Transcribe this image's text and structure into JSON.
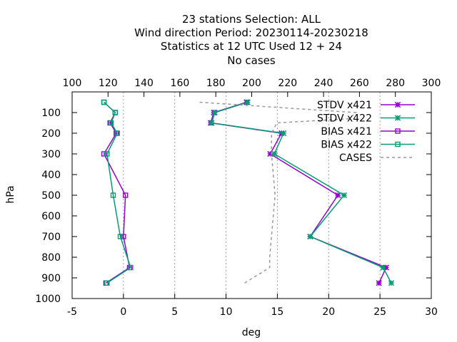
{
  "chart_data": {
    "type": "line",
    "title_lines": [
      "23 stations Selection: ALL",
      "Wind direction  Period: 20230114-20230218",
      "Statistics at 12 UTC  Used  12 + 24",
      "No cases"
    ],
    "xlabel": "deg",
    "ylabel": "hPa",
    "xlim": [
      -5,
      30
    ],
    "x_ticks": [
      -5,
      0,
      5,
      10,
      15,
      20,
      25,
      30
    ],
    "x2lim": [
      100,
      300
    ],
    "x2_ticks": [
      100,
      120,
      140,
      160,
      180,
      200,
      220,
      240,
      260,
      280,
      300
    ],
    "ylim": [
      1000,
      0
    ],
    "y_ticks": [
      100,
      200,
      300,
      400,
      500,
      600,
      700,
      800,
      900,
      1000
    ],
    "grid": "vertical",
    "legend_position": "top-right",
    "colors": {
      "purple": "#9400d3",
      "green": "#009e73",
      "gray": "#999999"
    },
    "series": [
      {
        "name": "STDV x421",
        "axis": "x",
        "marker": "star",
        "color": "#9400d3",
        "points": [
          [
            12.0,
            50
          ],
          [
            8.8,
            100
          ],
          [
            8.5,
            150
          ],
          [
            15.4,
            200
          ],
          [
            14.3,
            300
          ],
          [
            20.9,
            500
          ],
          [
            18.2,
            700
          ],
          [
            25.6,
            850
          ],
          [
            24.9,
            925
          ]
        ]
      },
      {
        "name": "STDV x422",
        "axis": "x",
        "marker": "star",
        "color": "#009e73",
        "points": [
          [
            12.1,
            50
          ],
          [
            8.9,
            100
          ],
          [
            8.6,
            150
          ],
          [
            15.6,
            200
          ],
          [
            14.7,
            300
          ],
          [
            21.5,
            500
          ],
          [
            18.2,
            700
          ],
          [
            25.3,
            850
          ],
          [
            26.1,
            925
          ]
        ]
      },
      {
        "name": "BIAS x421",
        "axis": "x",
        "marker": "square",
        "color": "#9400d3",
        "points": [
          [
            -1.9,
            50
          ],
          [
            -0.8,
            100
          ],
          [
            -1.3,
            150
          ],
          [
            -0.7,
            200
          ],
          [
            -1.9,
            300
          ],
          [
            0.2,
            500
          ],
          [
            0.0,
            700
          ],
          [
            0.6,
            850
          ],
          [
            -1.7,
            925
          ]
        ]
      },
      {
        "name": "BIAS x422",
        "axis": "x",
        "marker": "square",
        "color": "#009e73",
        "points": [
          [
            -1.9,
            50
          ],
          [
            -0.8,
            100
          ],
          [
            -1.2,
            150
          ],
          [
            -0.6,
            200
          ],
          [
            -1.6,
            300
          ],
          [
            -1.0,
            500
          ],
          [
            -0.3,
            700
          ],
          [
            0.7,
            850
          ],
          [
            -1.6,
            925
          ]
        ]
      },
      {
        "name": "CASES",
        "axis": "x2",
        "marker": "none",
        "dashed": true,
        "color": "#999999",
        "points": [
          [
            171,
            50
          ],
          [
            258,
            100
          ],
          [
            254,
            130
          ],
          [
            214,
            150
          ],
          [
            211,
            200
          ],
          [
            211,
            300
          ],
          [
            212,
            400
          ],
          [
            213,
            500
          ],
          [
            212,
            600
          ],
          [
            211,
            700
          ],
          [
            210,
            800
          ],
          [
            210,
            850
          ],
          [
            196,
            925
          ]
        ]
      }
    ]
  }
}
